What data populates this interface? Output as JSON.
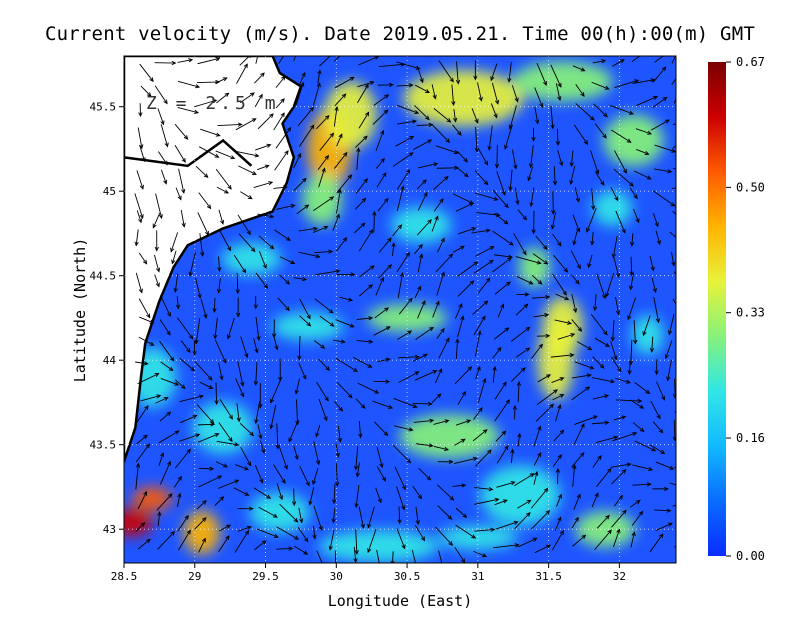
{
  "title": "Current velocity (m/s). Date 2019.05.21. Time 00(h):00(m) GMT",
  "depth_label": "Z = 2.5 m",
  "xlabel": "Longitude (East)",
  "ylabel": "Latitude (North)",
  "x_ticks": [
    "28.5",
    "29",
    "29.5",
    "30",
    "30.5",
    "31",
    "31.5",
    "32"
  ],
  "y_ticks": [
    "43",
    "43.5",
    "44",
    "44.5",
    "45",
    "45.5"
  ],
  "colorbar": {
    "ticks": [
      "0.67",
      "0.50",
      "0.33",
      "0.16",
      "0.00"
    ],
    "colors": [
      "#0a2cff",
      "#0a6cff",
      "#12b9ff",
      "#31e6e6",
      "#86f27a",
      "#e8f23a",
      "#ffb400",
      "#ff5a00",
      "#cc0000",
      "#7a0000"
    ]
  },
  "chart_data": {
    "type": "heatmap",
    "title": "Current velocity (m/s). Date 2019.05.21. Time 00(h):00(m) GMT",
    "xlabel": "Longitude (East)",
    "ylabel": "Latitude (North)",
    "xlim": [
      28.5,
      32.4
    ],
    "ylim": [
      42.8,
      45.8
    ],
    "colorbar_range": [
      0.0,
      0.67
    ],
    "colorbar_ticks": [
      0.0,
      0.16,
      0.33,
      0.5,
      0.67
    ],
    "grid": true,
    "overlay": "velocity vectors (arrows)"
  }
}
